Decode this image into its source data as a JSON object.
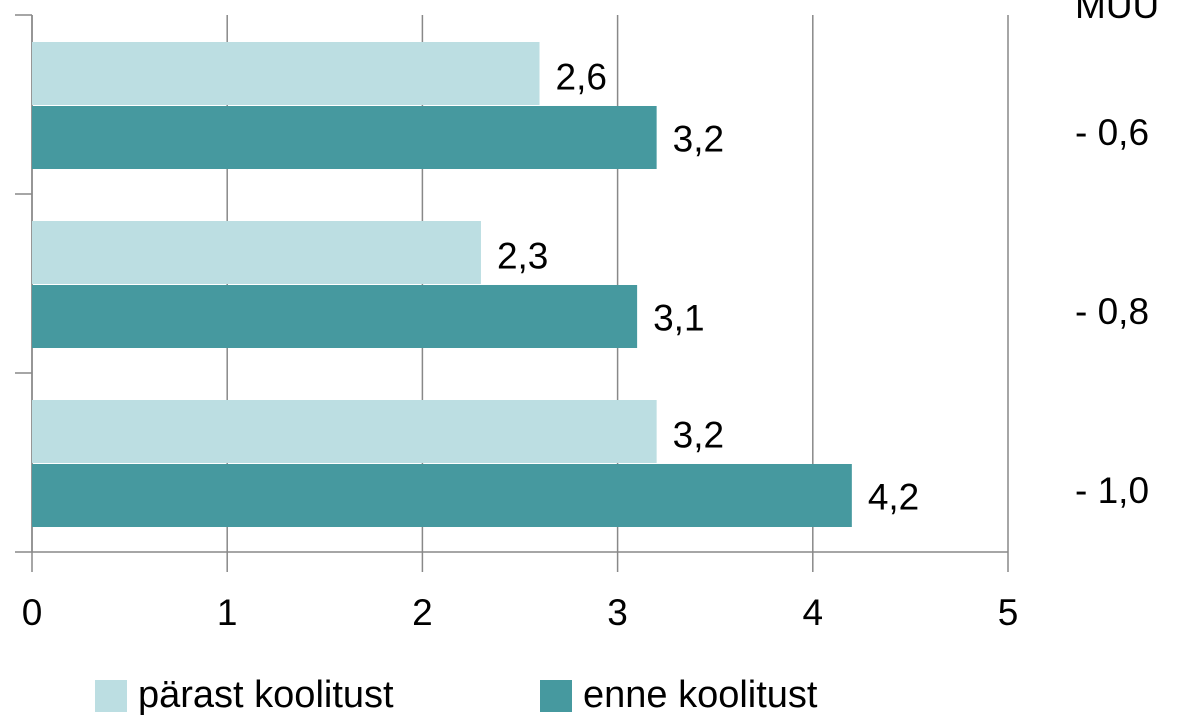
{
  "chart_data": {
    "type": "bar",
    "orientation": "horizontal",
    "categories": [
      null,
      null,
      null
    ],
    "series": [
      {
        "name": "pärast koolitust",
        "color": "#bcdee2",
        "values": [
          2.6,
          2.3,
          3.2
        ],
        "value_labels": [
          "2,6",
          "2,3",
          "3,2"
        ]
      },
      {
        "name": "enne koolitust",
        "color": "#46999f",
        "values": [
          3.2,
          3.1,
          4.2
        ],
        "value_labels": [
          "3,2",
          "3,1",
          "4,2"
        ]
      }
    ],
    "xlim": [
      0,
      5
    ],
    "xticks": [
      0,
      1,
      2,
      3,
      4,
      5
    ],
    "grid": true,
    "legend": "bottom",
    "annotation_title": "MUU",
    "annotations": [
      "- 0,6",
      "- 0,8",
      "- 1,0"
    ]
  }
}
